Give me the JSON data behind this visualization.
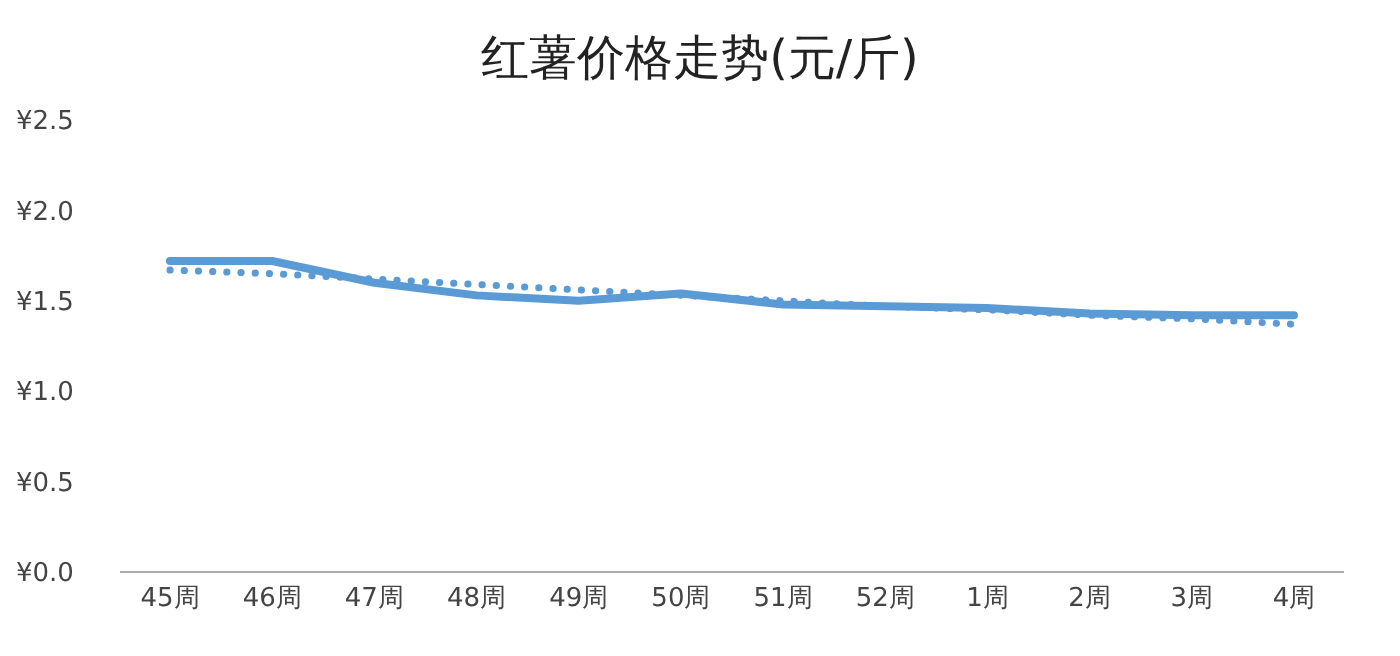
{
  "chart_data": {
    "type": "line",
    "title": "红薯价格走势(元/斤)",
    "categories": [
      "45周",
      "46周",
      "47周",
      "48周",
      "49周",
      "50周",
      "51周",
      "52周",
      "1周",
      "2周",
      "3周",
      "4周"
    ],
    "series": [
      {
        "color": "#5b9bd5",
        "line_style": "solid",
        "values": [
          1.72,
          1.72,
          1.6,
          1.53,
          1.5,
          1.54,
          1.48,
          1.47,
          1.46,
          1.43,
          1.42,
          1.42
        ]
      },
      {
        "color": "#5b9bd5",
        "line_style": "dotted",
        "values": [
          1.67,
          1.65,
          1.62,
          1.59,
          1.56,
          1.53,
          1.5,
          1.47,
          1.45,
          1.42,
          1.4,
          1.37
        ]
      }
    ],
    "ylim": [
      0,
      2.5
    ],
    "yticks": [
      {
        "value": 0,
        "label": "¥0.0"
      },
      {
        "value": 0.5,
        "label": "¥0.5"
      },
      {
        "value": 1,
        "label": "¥1.0"
      },
      {
        "value": 1.5,
        "label": "¥1.5"
      },
      {
        "value": 2,
        "label": "¥2.0"
      },
      {
        "value": 2.5,
        "label": "¥2.5"
      }
    ],
    "grid": false,
    "legend": false,
    "marker": "none"
  }
}
